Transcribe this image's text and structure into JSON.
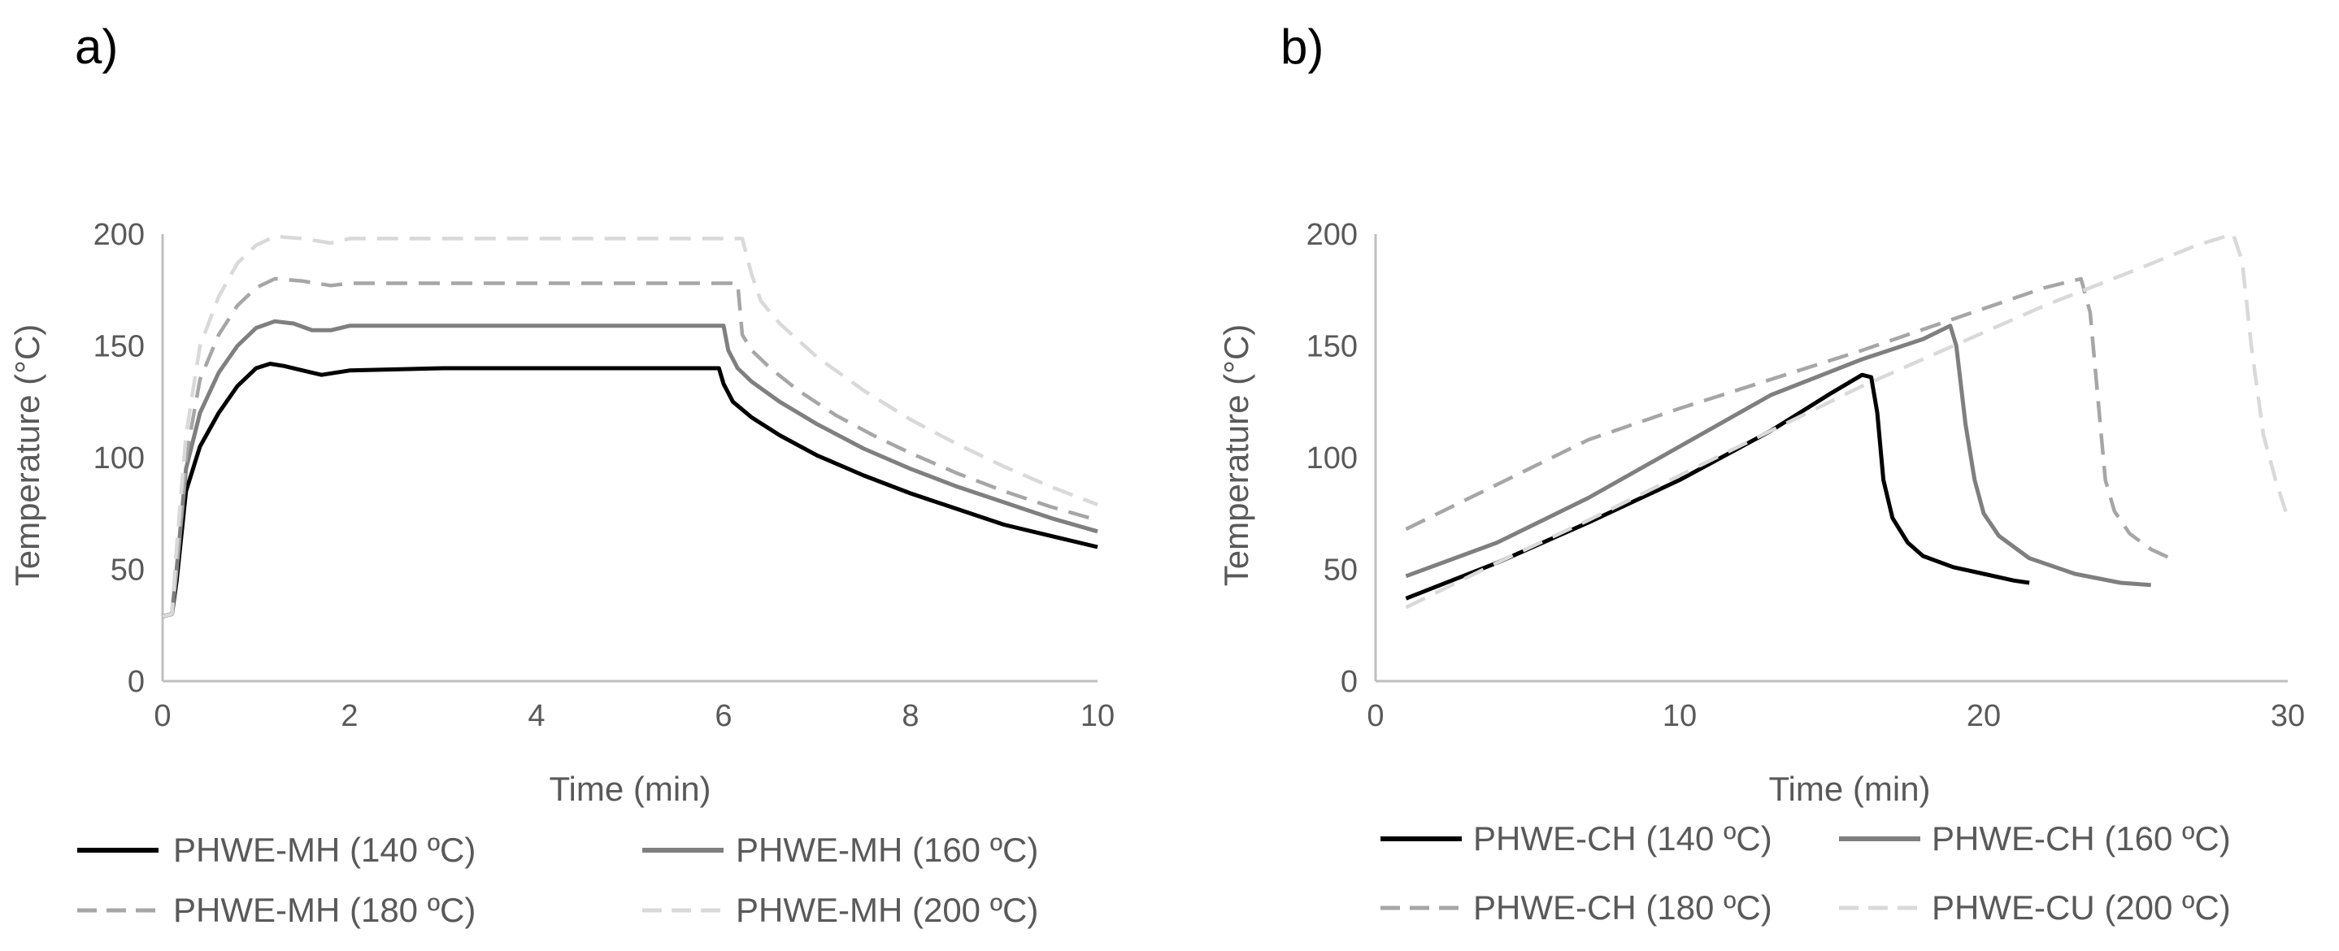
{
  "chart_data": [
    {
      "type": "line",
      "panel_label": "a)",
      "xlabel": "Time (min)",
      "ylabel": "Temperature (°C)",
      "xlim": [
        0,
        10
      ],
      "ylim": [
        0,
        200
      ],
      "x_ticks": [
        0,
        2,
        4,
        6,
        8,
        10
      ],
      "y_ticks": [
        0,
        50,
        100,
        150,
        200
      ],
      "grid": false,
      "legend_position": "bottom",
      "series": [
        {
          "name": "PHWE-MH (140 ºC)",
          "color": "#000000",
          "dash": "solid",
          "x": [
            0,
            0.1,
            0.15,
            0.25,
            0.4,
            0.6,
            0.8,
            1.0,
            1.15,
            1.3,
            1.5,
            1.7,
            2.0,
            3.0,
            4.0,
            5.0,
            5.95,
            6.0,
            6.1,
            6.3,
            6.6,
            7.0,
            7.5,
            8.0,
            8.5,
            9.0,
            9.5,
            10.0
          ],
          "y": [
            29,
            30,
            45,
            85,
            105,
            120,
            132,
            140,
            142,
            141,
            139,
            137,
            139,
            140,
            140,
            140,
            140,
            133,
            125,
            118,
            110,
            101,
            92,
            84,
            77,
            70,
            65,
            60
          ]
        },
        {
          "name": "PHWE-MH (160 ºC)",
          "color": "#7f7f7f",
          "dash": "solid",
          "x": [
            0,
            0.1,
            0.15,
            0.25,
            0.4,
            0.6,
            0.8,
            1.0,
            1.2,
            1.4,
            1.6,
            1.8,
            2.0,
            3.0,
            4.0,
            5.0,
            6.0,
            6.05,
            6.15,
            6.3,
            6.6,
            7.0,
            7.5,
            8.0,
            8.5,
            9.0,
            9.5,
            10.0
          ],
          "y": [
            29,
            30,
            50,
            95,
            120,
            138,
            150,
            158,
            161,
            160,
            157,
            157,
            159,
            159,
            159,
            159,
            159,
            148,
            140,
            134,
            125,
            115,
            104,
            95,
            87,
            80,
            73,
            67
          ]
        },
        {
          "name": "PHWE-MH (180 ºC)",
          "color": "#a6a6a6",
          "dash": "dashed",
          "x": [
            0,
            0.1,
            0.15,
            0.25,
            0.4,
            0.6,
            0.8,
            1.0,
            1.2,
            1.5,
            1.8,
            2.0,
            3.0,
            4.0,
            5.0,
            6.0,
            6.15,
            6.2,
            6.3,
            6.5,
            6.8,
            7.2,
            7.6,
            8.0,
            8.5,
            9.0,
            9.5,
            10.0
          ],
          "y": [
            29,
            30,
            50,
            100,
            135,
            155,
            168,
            176,
            180,
            179,
            177,
            178,
            178,
            178,
            178,
            178,
            178,
            155,
            148,
            140,
            130,
            119,
            110,
            102,
            93,
            85,
            78,
            72
          ]
        },
        {
          "name": "PHWE-MH (200 ºC)",
          "color": "#d9d9d9",
          "dash": "dashed",
          "x": [
            0,
            0.1,
            0.15,
            0.25,
            0.4,
            0.6,
            0.8,
            1.0,
            1.2,
            1.5,
            1.8,
            2.0,
            3.0,
            4.0,
            5.0,
            6.0,
            6.2,
            6.3,
            6.4,
            6.6,
            7.0,
            7.5,
            8.0,
            8.5,
            9.0,
            9.5,
            10.0
          ],
          "y": [
            29,
            30,
            60,
            110,
            150,
            172,
            187,
            195,
            199,
            198,
            196,
            198,
            198,
            198,
            198,
            198,
            198,
            182,
            170,
            160,
            145,
            130,
            117,
            106,
            96,
            87,
            79
          ]
        }
      ]
    },
    {
      "type": "line",
      "panel_label": "b)",
      "xlabel": "Time (min)",
      "ylabel": "Temperature (°C)",
      "xlim": [
        0,
        30
      ],
      "ylim": [
        0,
        200
      ],
      "x_ticks": [
        0,
        10,
        20,
        30
      ],
      "y_ticks": [
        0,
        50,
        100,
        150,
        200
      ],
      "grid": false,
      "legend_position": "bottom",
      "series": [
        {
          "name": "PHWE-CH (140 ºC)",
          "color": "#000000",
          "dash": "solid",
          "x": [
            1,
            4,
            7,
            10,
            13,
            15,
            16,
            16.3,
            16.5,
            16.7,
            17,
            17.5,
            18,
            19,
            20,
            21,
            21.5
          ],
          "y": [
            37,
            53,
            71,
            90,
            112,
            129,
            137,
            136,
            120,
            90,
            73,
            62,
            56,
            51,
            48,
            45,
            44
          ]
        },
        {
          "name": "PHWE-CH (160 ºC)",
          "color": "#7f7f7f",
          "dash": "solid",
          "x": [
            1,
            4,
            7,
            10,
            13,
            16,
            18,
            18.9,
            19.1,
            19.4,
            19.7,
            20,
            20.5,
            21.5,
            23,
            24.5,
            25.5
          ],
          "y": [
            47,
            62,
            82,
            105,
            128,
            144,
            153,
            159,
            150,
            115,
            90,
            75,
            65,
            55,
            48,
            44,
            43
          ]
        },
        {
          "name": "PHWE-CH (180 ºC)",
          "color": "#a6a6a6",
          "dash": "dashed",
          "x": [
            1,
            4,
            7,
            10,
            13,
            16,
            19,
            22,
            23.2,
            23.5,
            23.8,
            24,
            24.3,
            24.8,
            25.5,
            26.3
          ],
          "y": [
            68,
            88,
            108,
            122,
            135,
            148,
            162,
            176,
            180,
            165,
            120,
            90,
            76,
            66,
            59,
            54
          ]
        },
        {
          "name": "PHWE-CU (200 ºC)",
          "color": "#d9d9d9",
          "dash": "dashed",
          "x": [
            1,
            4,
            7,
            10,
            13,
            16,
            19,
            22,
            25,
            27,
            28.2,
            28.5,
            28.8,
            29.2,
            29.6,
            30
          ],
          "y": [
            33,
            53,
            72,
            92,
            112,
            132,
            150,
            168,
            184,
            195,
            200,
            188,
            150,
            110,
            90,
            73
          ]
        }
      ]
    }
  ]
}
